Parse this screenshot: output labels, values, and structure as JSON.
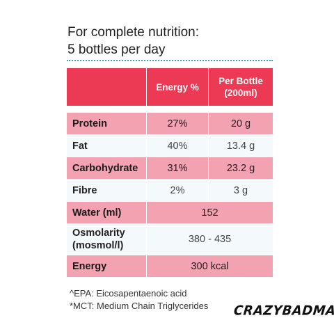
{
  "heading": {
    "line1": "For complete nutrition:",
    "line2": "5 bottles per day"
  },
  "table": {
    "header": {
      "col1": "",
      "col2": "Energy %",
      "col3_line1": "Per Bottle",
      "col3_line2": "(200ml)"
    },
    "rows": [
      {
        "label": "Protein",
        "energy": "27%",
        "per_bottle": "20 g"
      },
      {
        "label": "Fat",
        "energy": "40%",
        "per_bottle": "13.4 g"
      },
      {
        "label": "Carbohydrate",
        "energy": "31%",
        "per_bottle": "23.2 g"
      },
      {
        "label": "Fibre",
        "energy": "2%",
        "per_bottle": "3 g"
      },
      {
        "label": "Water (ml)",
        "value": "152"
      },
      {
        "label_line1": "Osmolarity",
        "label_line2": "(mosmol/l)",
        "value": "380 - 435"
      },
      {
        "label": "Energy",
        "value": "300 kcal"
      }
    ]
  },
  "footnotes": {
    "epa": "^EPA: Eicosapentaenoic acid",
    "mct": "*MCT: Medium Chain Triglycerides"
  },
  "brand": "CRAZYBADMAN",
  "colors": {
    "header_red": "#ec3a55",
    "row_pink": "#f2a2b0",
    "row_light": "#f4f9fc",
    "divider_blue": "#3aa0c8"
  }
}
